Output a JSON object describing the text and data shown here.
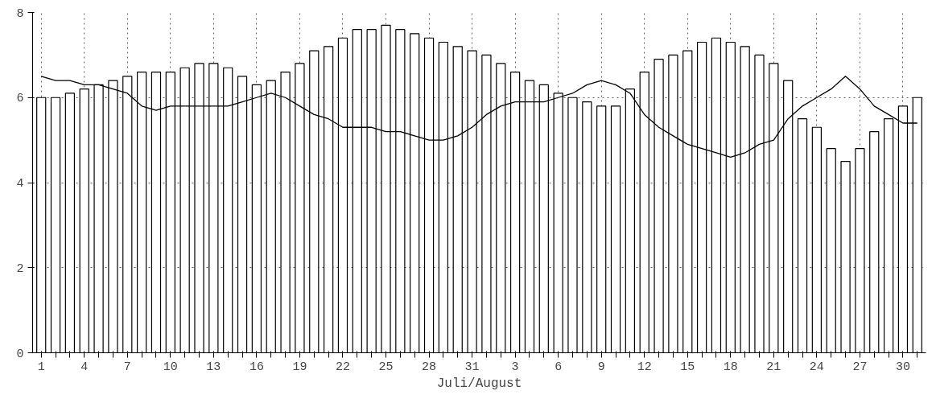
{
  "chart_data": {
    "type": "bar",
    "xlabel": "Juli/August",
    "categories": [
      "1",
      null,
      null,
      "4",
      null,
      null,
      "7",
      null,
      null,
      "10",
      null,
      null,
      "13",
      null,
      null,
      "16",
      null,
      null,
      "19",
      null,
      null,
      "22",
      null,
      null,
      "25",
      null,
      null,
      "28",
      null,
      null,
      "31",
      null,
      null,
      "3",
      null,
      null,
      "6",
      null,
      null,
      "9",
      null,
      null,
      "12",
      null,
      null,
      "15",
      null,
      null,
      "18",
      null,
      null,
      "21",
      null,
      null,
      "24",
      null,
      null,
      "27",
      null,
      null,
      "30",
      null
    ],
    "series": [
      {
        "color": "#ffffff",
        "values": [
          6.0,
          6.0,
          6.1,
          6.2,
          6.3,
          6.4,
          6.5,
          6.6,
          6.6,
          6.6,
          6.7,
          6.8,
          6.8,
          6.7,
          6.5,
          6.3,
          6.4,
          6.6,
          6.8,
          7.1,
          7.2,
          7.4,
          7.6,
          7.6,
          7.7,
          7.6,
          7.5,
          7.4,
          7.3,
          7.2,
          7.1,
          7.0,
          6.8,
          6.6,
          6.4,
          6.3,
          6.1,
          6.0,
          5.9,
          5.8,
          5.8,
          6.2,
          6.6,
          6.9,
          7.0,
          7.1,
          7.3,
          7.4,
          7.3,
          7.2,
          7.0,
          6.8,
          6.4,
          5.5,
          5.3,
          4.8,
          4.5,
          4.8,
          5.2,
          5.5,
          5.8,
          6.0
        ]
      },
      {
        "type": "line",
        "color": "#000000",
        "values": [
          6.5,
          6.4,
          6.4,
          6.3,
          6.3,
          6.2,
          6.1,
          5.8,
          5.7,
          5.8,
          5.8,
          5.8,
          5.8,
          5.8,
          5.9,
          6.0,
          6.1,
          6.0,
          5.8,
          5.6,
          5.5,
          5.3,
          5.3,
          5.3,
          5.2,
          5.2,
          5.1,
          5.0,
          5.0,
          5.1,
          5.3,
          5.6,
          5.8,
          5.9,
          5.9,
          5.9,
          6.0,
          6.1,
          6.3,
          6.4,
          6.3,
          6.1,
          5.6,
          5.3,
          5.1,
          4.9,
          4.8,
          4.7,
          4.6,
          4.7,
          4.9,
          5.0,
          5.5,
          5.8,
          6.0,
          6.2,
          6.5,
          6.2,
          5.8,
          5.6,
          5.4,
          5.4
        ]
      }
    ],
    "ylim": [
      0,
      8
    ],
    "yticks": [
      0,
      2,
      4,
      6,
      8
    ],
    "grid": true,
    "line_style": "solid"
  }
}
